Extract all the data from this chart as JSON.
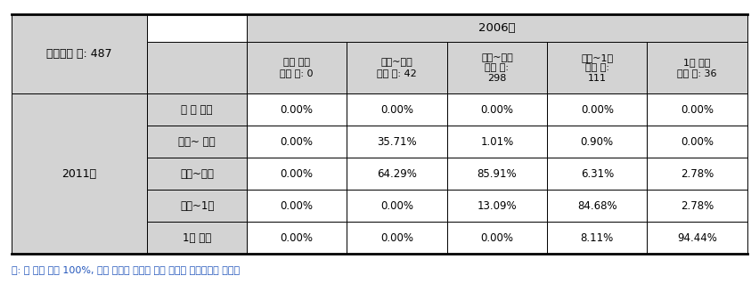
{
  "title": "2006년",
  "total_label": "전체기업 수: 487",
  "year_row_label": "2011년",
  "col_headers": [
    "십억 미만\n기업 수: 0",
    "십억~백억\n기업 수: 42",
    "백억~천억\n기업 수:\n298",
    "천억~1조\n기업 수:\n111",
    "1조 이상\n기업 수: 36"
  ],
  "row_labels": [
    "십 억 미만",
    "십억~ 백억",
    "백억~천억",
    "천억~1조",
    "1조 이상"
  ],
  "data": [
    [
      "0.00%",
      "0.00%",
      "0.00%",
      "0.00%",
      "0.00%"
    ],
    [
      "0.00%",
      "35.71%",
      "1.01%",
      "0.90%",
      "0.00%"
    ],
    [
      "0.00%",
      "64.29%",
      "85.91%",
      "6.31%",
      "2.78%"
    ],
    [
      "0.00%",
      "0.00%",
      "13.09%",
      "84.68%",
      "2.78%"
    ],
    [
      "0.00%",
      "0.00%",
      "0.00%",
      "8.11%",
      "94.44%"
    ]
  ],
  "header_bg": "#d3d3d3",
  "cell_bg": "#ffffff",
  "border_color": "#000000",
  "thick_border_color": "#000000",
  "note": "주: 각 열의 합은 100%, 시작 년도의 구간별 종료 년도의 구간분포를 나타냄",
  "note_color": "#2255bb"
}
